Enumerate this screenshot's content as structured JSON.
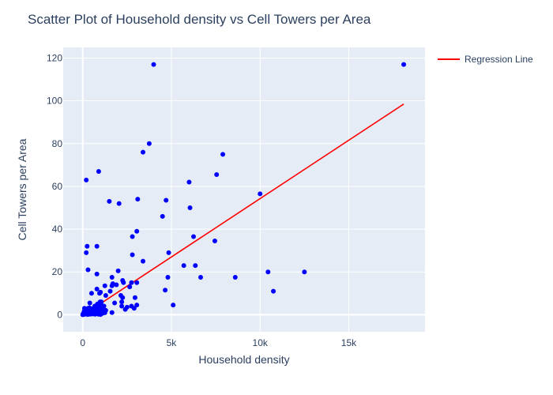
{
  "chart_data": {
    "type": "scatter",
    "title": "Scatter Plot of Household density vs Cell Towers per Area",
    "xlabel": "Household density",
    "ylabel": "Cell Towers per Area",
    "xlim": [
      -1100,
      19300
    ],
    "ylim": [
      -8,
      125
    ],
    "x_ticks": [
      0,
      5000,
      10000,
      15000
    ],
    "x_tick_labels": [
      "0",
      "5k",
      "10k",
      "15k"
    ],
    "y_ticks": [
      0,
      20,
      40,
      60,
      80,
      100,
      120
    ],
    "y_tick_labels": [
      "0",
      "20",
      "40",
      "60",
      "80",
      "100",
      "120"
    ],
    "grid": true,
    "legend_position": "top-right",
    "colors": {
      "points": "#0000ff",
      "regression": "#ff0000",
      "plot_bg": "#e5ecf6",
      "grid": "#ffffff"
    },
    "series": [
      {
        "type": "scatter",
        "points": [
          [
            4000,
            117
          ],
          [
            18100,
            117
          ],
          [
            3750,
            80
          ],
          [
            3400,
            76
          ],
          [
            7900,
            75
          ],
          [
            900,
            67
          ],
          [
            7550,
            65.5
          ],
          [
            200,
            63
          ],
          [
            6000,
            62
          ],
          [
            10000,
            56.5
          ],
          [
            3100,
            54
          ],
          [
            1500,
            53
          ],
          [
            4700,
            53.5
          ],
          [
            2050,
            52
          ],
          [
            6050,
            50
          ],
          [
            4500,
            46
          ],
          [
            3050,
            39
          ],
          [
            6250,
            36.5
          ],
          [
            2800,
            36.5
          ],
          [
            7450,
            34.5
          ],
          [
            250,
            32
          ],
          [
            800,
            32
          ],
          [
            4850,
            29
          ],
          [
            200,
            29
          ],
          [
            2800,
            28
          ],
          [
            3400,
            25
          ],
          [
            5700,
            23
          ],
          [
            6350,
            23
          ],
          [
            300,
            21
          ],
          [
            2000,
            20.5
          ],
          [
            10450,
            20
          ],
          [
            12500,
            20
          ],
          [
            800,
            19
          ],
          [
            1650,
            17.5
          ],
          [
            4800,
            17.5
          ],
          [
            6650,
            17.5
          ],
          [
            8600,
            17.5
          ],
          [
            2250,
            16
          ],
          [
            2300,
            15
          ],
          [
            2750,
            15
          ],
          [
            3050,
            15
          ],
          [
            1700,
            14.5
          ],
          [
            1900,
            14
          ],
          [
            1250,
            13.5
          ],
          [
            1650,
            13.5
          ],
          [
            2650,
            13
          ],
          [
            800,
            12
          ],
          [
            1550,
            11
          ],
          [
            4650,
            11.5
          ],
          [
            10750,
            11
          ],
          [
            500,
            10
          ],
          [
            950,
            10
          ],
          [
            1000,
            10.5
          ],
          [
            1300,
            9
          ],
          [
            2150,
            9
          ],
          [
            2250,
            8
          ],
          [
            2950,
            8
          ],
          [
            2200,
            6
          ],
          [
            1800,
            5.5
          ],
          [
            1050,
            6
          ],
          [
            400,
            5.5
          ],
          [
            3050,
            4.5
          ],
          [
            5100,
            4.5
          ],
          [
            2200,
            4
          ],
          [
            2750,
            4
          ],
          [
            1200,
            4
          ],
          [
            700,
            3.5
          ],
          [
            2500,
            3.5
          ],
          [
            2900,
            3
          ],
          [
            2400,
            2.5
          ],
          [
            1300,
            2
          ],
          [
            1650,
            1
          ],
          [
            100,
            3
          ],
          [
            200,
            2
          ],
          [
            300,
            3
          ],
          [
            400,
            1
          ],
          [
            500,
            2
          ],
          [
            600,
            3
          ],
          [
            700,
            1.5
          ],
          [
            800,
            4
          ],
          [
            900,
            2.5
          ],
          [
            1000,
            1
          ],
          [
            1100,
            3
          ],
          [
            1200,
            2
          ],
          [
            100,
            0.5
          ],
          [
            200,
            0.3
          ],
          [
            300,
            0.8
          ],
          [
            400,
            0.2
          ],
          [
            500,
            1
          ],
          [
            600,
            0.5
          ],
          [
            700,
            0.2
          ],
          [
            800,
            0.8
          ],
          [
            900,
            0.4
          ],
          [
            1000,
            0.1
          ],
          [
            1100,
            0.6
          ],
          [
            50,
            0.1
          ],
          [
            150,
            1.2
          ],
          [
            250,
            0.7
          ],
          [
            350,
            2
          ],
          [
            450,
            0.4
          ],
          [
            550,
            1.5
          ],
          [
            650,
            0.3
          ],
          [
            750,
            2.2
          ],
          [
            850,
            1
          ],
          [
            950,
            3.5
          ],
          [
            1050,
            4.5
          ],
          [
            1150,
            1.8
          ],
          [
            1250,
            0.9
          ],
          [
            0,
            0
          ],
          [
            30,
            0.5
          ],
          [
            80,
            1.5
          ],
          [
            120,
            0.2
          ],
          [
            180,
            2.5
          ],
          [
            220,
            1
          ],
          [
            280,
            0.1
          ],
          [
            330,
            1.1
          ],
          [
            380,
            3.2
          ],
          [
            420,
            0.6
          ],
          [
            470,
            1.9
          ],
          [
            520,
            0.3
          ],
          [
            580,
            2.8
          ],
          [
            630,
            0.9
          ],
          [
            680,
            4
          ],
          [
            720,
            0.5
          ],
          [
            780,
            1.4
          ],
          [
            830,
            5
          ],
          [
            880,
            0.2
          ],
          [
            930,
            2
          ],
          [
            980,
            6
          ],
          [
            1030,
            1.2
          ]
        ]
      },
      {
        "name": "Regression Line",
        "type": "line",
        "points": [
          [
            0,
            -0.3
          ],
          [
            18100,
            98.5
          ]
        ]
      }
    ]
  }
}
